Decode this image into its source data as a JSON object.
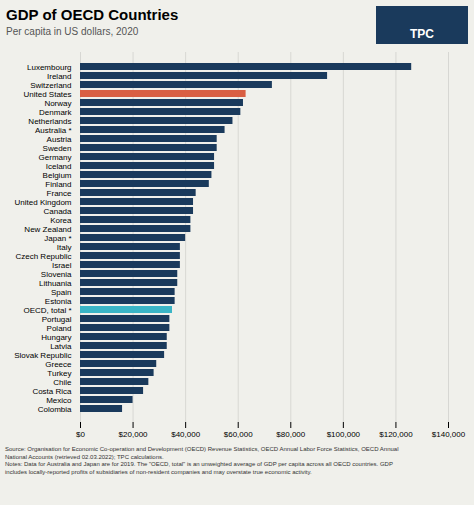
{
  "chart_data": {
    "type": "bar",
    "orientation": "horizontal",
    "title": "GDP of OECD Countries",
    "subtitle": "Per capita in US dollars, 2020",
    "caption": "Source: Organisation for Economic Co-operation and Development (OECD) Revenue Statistics, OECD Annual Labor Force Statistics, OECD Annual\nNational Accounts (retrieved 02.03.2022); TPC calculations.\nNotes: Data for Australia and Japan are for 2019. The \"OECD, total\" is an unweighted average of GDP per capita across all OECD countries. GDP\nincludes locally-reported profits of subsidiaries of non-resident companies and may overstate true economic activity.",
    "annotations": [
      "TPC"
    ],
    "categories": [
      "Luxembourg",
      "Ireland",
      "Switzerland",
      "United States",
      "Norway",
      "Denmark",
      "Netherlands",
      "Australia *",
      "Austria",
      "Sweden",
      "Germany",
      "Iceland",
      "Belgium",
      "Finland",
      "France",
      "United Kingdom",
      "Canada",
      "Korea",
      "New Zealand",
      "Japan *",
      "Italy",
      "Czech Republic",
      "Israel",
      "Slovenia",
      "Lithuania",
      "Spain",
      "Estonia",
      "OECD, total *",
      "Portugal",
      "Poland",
      "Hungary",
      "Latvia",
      "Slovak Republic",
      "Greece",
      "Turkey",
      "Chile",
      "Costa Rica",
      "Mexico",
      "Colombia"
    ],
    "values": [
      126000,
      94000,
      73000,
      63000,
      62000,
      61000,
      58000,
      55000,
      52000,
      52000,
      51000,
      51000,
      50000,
      49000,
      44000,
      43000,
      43000,
      42000,
      42000,
      40000,
      38000,
      38000,
      38000,
      37000,
      37000,
      36000,
      36000,
      35000,
      34000,
      34000,
      33000,
      33000,
      32000,
      29000,
      28000,
      26000,
      24000,
      20000,
      16000
    ],
    "colors": [
      "#1a3a5c",
      "#1a3a5c",
      "#1a3a5c",
      "#d95f43",
      "#1a3a5c",
      "#1a3a5c",
      "#1a3a5c",
      "#1a3a5c",
      "#1a3a5c",
      "#1a3a5c",
      "#1a3a5c",
      "#1a3a5c",
      "#1a3a5c",
      "#1a3a5c",
      "#1a3a5c",
      "#1a3a5c",
      "#1a3a5c",
      "#1a3a5c",
      "#1a3a5c",
      "#1a3a5c",
      "#1a3a5c",
      "#1a3a5c",
      "#1a3a5c",
      "#1a3a5c",
      "#1a3a5c",
      "#1a3a5c",
      "#1a3a5c",
      "#3ab5c6",
      "#1a3a5c",
      "#1a3a5c",
      "#1a3a5c",
      "#1a3a5c",
      "#1a3a5c",
      "#1a3a5c",
      "#1a3a5c",
      "#1a3a5c",
      "#1a3a5c",
      "#1a3a5c",
      "#1a3a5c"
    ],
    "xlim": [
      0,
      140000
    ],
    "xticks": [
      {
        "value": 0,
        "label": "$0"
      },
      {
        "value": 20000,
        "label": "$20,000"
      },
      {
        "value": 40000,
        "label": "$40,000"
      },
      {
        "value": 60000,
        "label": "$60,000"
      },
      {
        "value": 80000,
        "label": "$80,000"
      },
      {
        "value": 100000,
        "label": "$100,000"
      },
      {
        "value": 120000,
        "label": "$120,000"
      },
      {
        "value": 140000,
        "label": "$140,000"
      }
    ],
    "grid": true
  }
}
